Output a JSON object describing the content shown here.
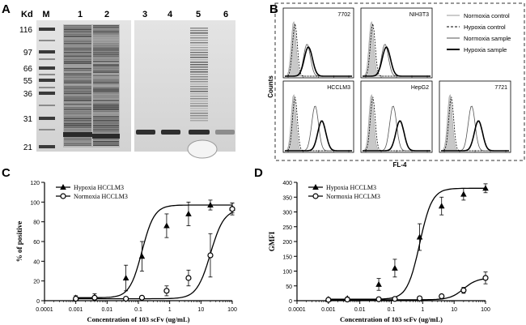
{
  "panels": {
    "A": "A",
    "B": "B",
    "C": "C",
    "D": "D"
  },
  "gel": {
    "kd_label": "Kd",
    "lane_labels": [
      "M",
      "1",
      "2",
      "3",
      "4",
      "5",
      "6"
    ],
    "markers": [
      "116",
      "97",
      "66",
      "55",
      "36",
      "31",
      "21"
    ]
  },
  "flow": {
    "y_label": "Counts",
    "x_label": "FL-4",
    "cells": [
      "7702",
      "NIH3T3",
      "HCCLM3",
      "HepG2",
      "7721"
    ],
    "legend": [
      "Normoxia control",
      "Hypoxia control",
      "Normoxia sample",
      "Hypoxia sample"
    ]
  },
  "colors": {
    "hypoxia": "#000000",
    "normoxia": "#000000",
    "filled": "#c8c8c8"
  },
  "chart_data": [
    {
      "panel": "C",
      "type": "scatter",
      "ylabel": "% of positive",
      "xlabel": "Concentration of 103 scFv (ug/mL)",
      "xscale": "log",
      "xlim": [
        0.0001,
        100
      ],
      "ylim": [
        0,
        120
      ],
      "xticks": [
        "0.0001",
        "0.001",
        "0.01",
        "0.1",
        "1",
        "10",
        "100"
      ],
      "yticks": [
        "0",
        "20",
        "40",
        "60",
        "80",
        "100",
        "120"
      ],
      "legend_position": "top-left",
      "series": [
        {
          "name": "Hypoxia HCCLM3",
          "marker": "triangle",
          "x": [
            0.001,
            0.004,
            0.04,
            0.13,
            0.8,
            4,
            20,
            100
          ],
          "y": [
            3,
            4,
            23,
            45,
            76,
            88,
            97,
            94
          ],
          "err": [
            2,
            3,
            13,
            15,
            12,
            12,
            5,
            5
          ]
        },
        {
          "name": "Normoxia HCCLM3",
          "marker": "circle",
          "x": [
            0.001,
            0.004,
            0.04,
            0.13,
            0.8,
            4,
            20,
            100
          ],
          "y": [
            2,
            3,
            2,
            3,
            10,
            23,
            46,
            93
          ],
          "err": [
            1,
            1,
            1,
            1,
            5,
            8,
            22,
            6
          ]
        }
      ]
    },
    {
      "panel": "D",
      "type": "scatter",
      "ylabel": "GMFI",
      "xlabel": "Concentration of 103 scFv (ug/mL)",
      "xscale": "log",
      "xlim": [
        0.0001,
        100
      ],
      "ylim": [
        0,
        400
      ],
      "xticks": [
        "0.0001",
        "0.001",
        "0.01",
        "0.1",
        "1",
        "10",
        "100"
      ],
      "yticks": [
        "0",
        "50",
        "100",
        "150",
        "200",
        "250",
        "300",
        "350",
        "400"
      ],
      "legend_position": "top-left",
      "series": [
        {
          "name": "Hypoxia HCCLM3",
          "marker": "triangle",
          "x": [
            0.001,
            0.004,
            0.04,
            0.13,
            0.8,
            4,
            20,
            100
          ],
          "y": [
            5,
            8,
            55,
            110,
            215,
            320,
            360,
            380
          ],
          "err": [
            3,
            4,
            20,
            30,
            45,
            30,
            20,
            15
          ]
        },
        {
          "name": "Normoxia HCCLM3",
          "marker": "circle",
          "x": [
            0.001,
            0.004,
            0.04,
            0.13,
            0.8,
            4,
            20,
            100
          ],
          "y": [
            3,
            4,
            5,
            6,
            8,
            15,
            35,
            77
          ],
          "err": [
            2,
            2,
            2,
            2,
            3,
            6,
            10,
            20
          ]
        }
      ]
    }
  ]
}
